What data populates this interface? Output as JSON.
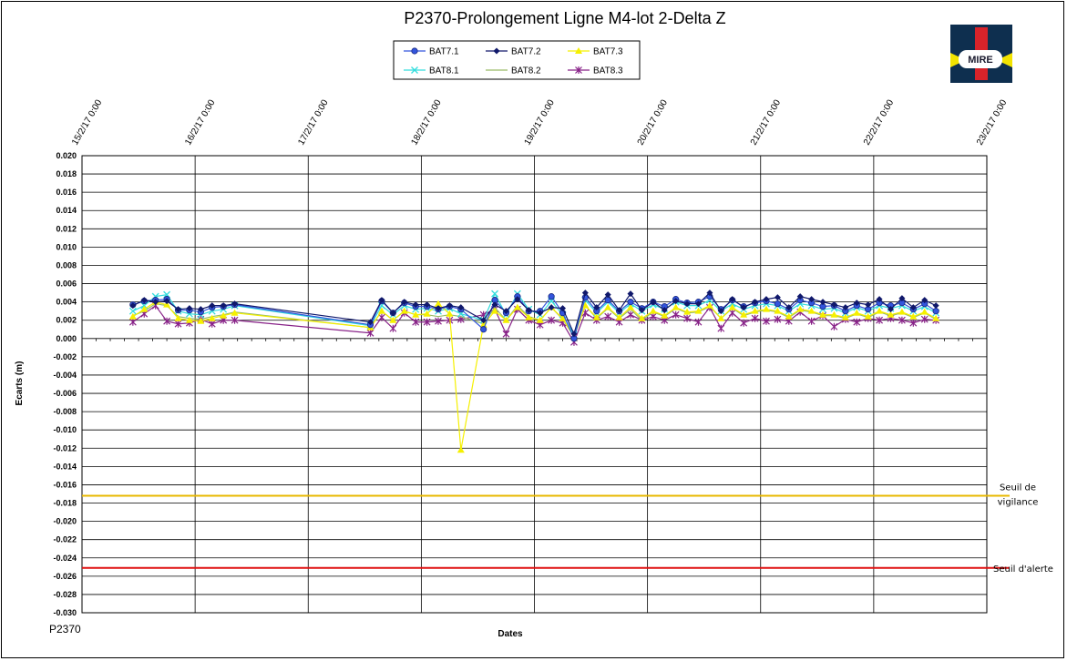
{
  "footer_label": "P2370",
  "logo": {
    "text": "MIRE",
    "colors": {
      "dark": "#0e2f4f",
      "yellow": "#f2e300",
      "red": "#d8232a"
    }
  },
  "chart_data": {
    "type": "line",
    "title": "P2370-Prolongement  Ligne  M4-lot  2-Delta  Z",
    "xlabel": "Dates",
    "ylabel": "Ecarts (m)",
    "xlim": [
      "15/2/17 0:00",
      "23/2/17 0:00"
    ],
    "ylim": [
      -0.03,
      0.02
    ],
    "y_step": 0.002,
    "x_tick_labels": [
      "15/2/17 0:00",
      "16/2/17 0:00",
      "17/2/17 0:00",
      "18/2/17 0:00",
      "19/2/17 0:00",
      "20/2/17 0:00",
      "21/2/17 0:00",
      "22/2/17 0:00",
      "23/2/17 0:00"
    ],
    "y_tick_labels": [
      "0.020",
      "0.018",
      "0.016",
      "0.014",
      "0.012",
      "0.010",
      "0.008",
      "0.006",
      "0.004",
      "0.002",
      "0.000",
      "-0.002",
      "-0.004",
      "-0.006",
      "-0.008",
      "-0.010",
      "-0.012",
      "-0.014",
      "-0.016",
      "-0.018",
      "-0.020",
      "-0.022",
      "-0.024",
      "-0.026",
      "-0.028",
      "-0.030"
    ],
    "grid": true,
    "legend_position": "top-center",
    "x_datetimes": [
      "15/2/17 10:48",
      "15/2/17 13:12",
      "15/2/17 15:36",
      "15/2/17 18:00",
      "15/2/17 20:24",
      "15/2/17 22:48",
      "16/2/17 1:12",
      "16/2/17 3:36",
      "16/2/17 6:00",
      "16/2/17 8:24",
      "17/2/17 13:12",
      "17/2/17 15:36",
      "17/2/17 18:00",
      "17/2/17 20:24",
      "17/2/17 22:48",
      "18/2/17 1:12",
      "18/2/17 3:36",
      "18/2/17 6:00",
      "18/2/17 8:24",
      "18/2/17 13:12",
      "18/2/17 15:36",
      "18/2/17 18:00",
      "18/2/17 20:24",
      "18/2/17 22:48",
      "19/2/17 1:12",
      "19/2/17 3:36",
      "19/2/17 6:00",
      "19/2/17 8:24",
      "19/2/17 10:48",
      "19/2/17 13:12",
      "19/2/17 15:36",
      "19/2/17 18:00",
      "19/2/17 20:24",
      "19/2/17 22:48",
      "20/2/17 1:12",
      "20/2/17 3:36",
      "20/2/17 6:00",
      "20/2/17 8:24",
      "20/2/17 10:48",
      "20/2/17 13:12",
      "20/2/17 15:36",
      "20/2/17 18:00",
      "20/2/17 20:24",
      "20/2/17 22:48",
      "21/2/17 1:12",
      "21/2/17 3:36",
      "21/2/17 6:00",
      "21/2/17 8:24",
      "21/2/17 10:48",
      "21/2/17 13:12",
      "21/2/17 15:36",
      "21/2/17 18:00",
      "21/2/17 20:24",
      "21/2/17 22:48",
      "22/2/17 1:12",
      "22/2/17 3:36",
      "22/2/17 6:00",
      "22/2/17 8:24",
      "22/2/17 10:48",
      "22/2/17 13:12"
    ],
    "series": [
      {
        "name": "BAT7.1",
        "color": "#3355dd",
        "marker": "circle",
        "values": [
          0.0037,
          0.0041,
          0.0042,
          0.0043,
          0.0031,
          0.0031,
          0.0029,
          0.0034,
          0.0035,
          0.0037,
          0.0015,
          0.0041,
          0.0028,
          0.0039,
          0.0035,
          0.0035,
          0.0032,
          0.0035,
          0.0032,
          0.001,
          0.0042,
          0.0028,
          0.0046,
          0.003,
          0.003,
          0.0046,
          0.0028,
          0.0,
          0.0045,
          0.003,
          0.0042,
          0.003,
          0.004,
          0.0033,
          0.004,
          0.0035,
          0.0043,
          0.0039,
          0.004,
          0.0046,
          0.0032,
          0.0042,
          0.0035,
          0.0039,
          0.0041,
          0.0038,
          0.0032,
          0.0042,
          0.0039,
          0.0035,
          0.0036,
          0.003,
          0.0036,
          0.0032,
          0.0039,
          0.0036,
          0.0039,
          0.0032,
          0.0038,
          0.003
        ]
      },
      {
        "name": "BAT7.2",
        "color": "#10186b",
        "marker": "diamond",
        "values": [
          0.0036,
          0.0042,
          0.004,
          0.0041,
          0.0032,
          0.0033,
          0.0032,
          0.0036,
          0.0036,
          0.0038,
          0.0018,
          0.0042,
          0.0028,
          0.004,
          0.0037,
          0.0037,
          0.0033,
          0.0036,
          0.0034,
          0.002,
          0.0037,
          0.003,
          0.0043,
          0.0031,
          0.0028,
          0.0034,
          0.0033,
          0.0005,
          0.005,
          0.0034,
          0.0048,
          0.0031,
          0.0049,
          0.0031,
          0.004,
          0.0031,
          0.0041,
          0.0038,
          0.0038,
          0.005,
          0.003,
          0.0043,
          0.0034,
          0.004,
          0.0043,
          0.0045,
          0.0034,
          0.0046,
          0.0043,
          0.004,
          0.0037,
          0.0034,
          0.0039,
          0.0037,
          0.0043,
          0.0032,
          0.0044,
          0.0034,
          0.0042,
          0.0036
        ]
      },
      {
        "name": "BAT7.3",
        "color": "#f5f000",
        "marker": "triangle",
        "values": [
          0.0024,
          0.0032,
          0.004,
          0.0037,
          0.0022,
          0.002,
          0.0019,
          0.0022,
          0.0025,
          0.0028,
          0.0012,
          0.003,
          0.002,
          0.003,
          0.0026,
          0.0027,
          0.0038,
          0.0027,
          -0.0122,
          0.0015,
          0.003,
          0.002,
          0.0034,
          0.0023,
          0.002,
          0.0034,
          0.0022,
          0.0002,
          0.0036,
          0.0023,
          0.0034,
          0.0023,
          0.0034,
          0.0022,
          0.003,
          0.0025,
          0.0034,
          0.0029,
          0.003,
          0.0036,
          0.0022,
          0.0034,
          0.0026,
          0.003,
          0.0032,
          0.003,
          0.0024,
          0.0032,
          0.003,
          0.0026,
          0.0026,
          0.0023,
          0.0028,
          0.0024,
          0.003,
          0.0026,
          0.0029,
          0.0024,
          0.0029,
          0.0022
        ]
      },
      {
        "name": "BAT8.1",
        "color": "#33dddd",
        "marker": "x",
        "values": [
          0.003,
          0.0036,
          0.0046,
          0.0048,
          0.003,
          0.0027,
          0.0026,
          0.003,
          0.0032,
          0.0036,
          0.0014,
          0.0036,
          0.0026,
          0.0036,
          0.0032,
          0.0033,
          0.003,
          0.0033,
          0.0027,
          0.002,
          0.0049,
          0.0026,
          0.0049,
          0.0032,
          0.0026,
          0.0041,
          0.0026,
          0.0004,
          0.0042,
          0.0028,
          0.004,
          0.0028,
          0.0038,
          0.003,
          0.0037,
          0.0032,
          0.004,
          0.0036,
          0.0036,
          0.0042,
          0.003,
          0.0038,
          0.0032,
          0.0036,
          0.0038,
          0.0036,
          0.003,
          0.0038,
          0.0036,
          0.0032,
          0.0033,
          0.0028,
          0.0034,
          0.003,
          0.0036,
          0.0033,
          0.0036,
          0.003,
          0.0035,
          0.0028
        ]
      },
      {
        "name": "BAT8.2",
        "color": "#99bb66",
        "marker": "none",
        "values": [
          0.0025,
          0.003,
          0.0038,
          0.0036,
          0.0024,
          0.0022,
          0.0021,
          0.0024,
          0.0026,
          0.0029,
          0.0012,
          0.003,
          0.002,
          0.003,
          0.0026,
          0.0026,
          0.0024,
          0.0026,
          0.0024,
          0.0016,
          0.0034,
          0.002,
          0.0036,
          0.0024,
          0.002,
          0.0034,
          0.0021,
          0.0002,
          0.0036,
          0.0022,
          0.0033,
          0.0022,
          0.0032,
          0.002,
          0.0029,
          0.0024,
          0.0033,
          0.0028,
          0.0029,
          0.0035,
          0.0022,
          0.0033,
          0.0025,
          0.0029,
          0.0031,
          0.0029,
          0.0023,
          0.0031,
          0.0029,
          0.0025,
          0.0025,
          0.0022,
          0.0027,
          0.0023,
          0.0029,
          0.0025,
          0.0028,
          0.0023,
          0.0028,
          0.0021
        ]
      },
      {
        "name": "BAT8.3",
        "color": "#882288",
        "marker": "star",
        "values": [
          0.0018,
          0.0027,
          0.0036,
          0.0019,
          0.0016,
          0.0017,
          0.0021,
          0.0016,
          0.002,
          0.002,
          0.0006,
          0.0023,
          0.0011,
          0.0028,
          0.0018,
          0.0018,
          0.0019,
          0.002,
          0.0021,
          0.0026,
          0.0032,
          0.0005,
          0.0032,
          0.002,
          0.0015,
          0.002,
          0.0017,
          -0.0004,
          0.0028,
          0.002,
          0.0024,
          0.0018,
          0.0026,
          0.002,
          0.0024,
          0.002,
          0.0026,
          0.0022,
          0.0018,
          0.0034,
          0.0011,
          0.0028,
          0.0017,
          0.0022,
          0.0019,
          0.0021,
          0.0019,
          0.0029,
          0.0019,
          0.0025,
          0.0013,
          0.0021,
          0.0018,
          0.0022,
          0.002,
          0.0022,
          0.002,
          0.0017,
          0.0021,
          0.002
        ]
      }
    ],
    "thresholds": [
      {
        "label_line1": "Seuil de",
        "label_line2": "vigilance",
        "value": -0.0172,
        "color": "#e8b800"
      },
      {
        "label_line1": "Seuil d'alerte",
        "label_line2": "",
        "value": -0.0251,
        "color": "#e01010"
      }
    ]
  }
}
